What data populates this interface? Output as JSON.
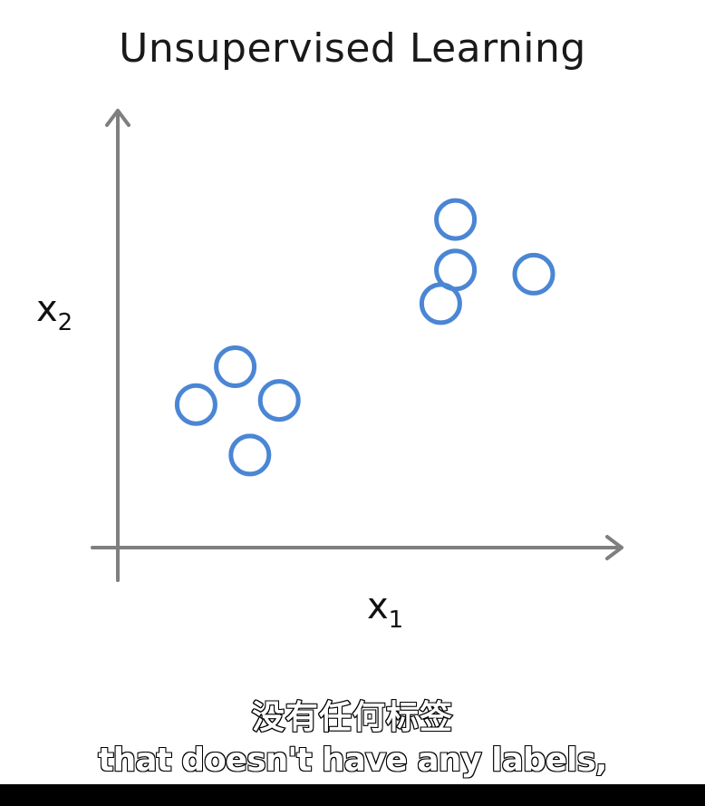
{
  "chart_data": {
    "type": "scatter",
    "title": "Unsupervised Learning",
    "xlabel": "x",
    "xlabel_sub": "1",
    "ylabel": "x",
    "ylabel_sub": "2",
    "xlim": [
      0,
      10
    ],
    "ylim": [
      0,
      10
    ],
    "grid": false,
    "marker": "open-circle",
    "marker_color": "#4a86d4",
    "axis_color": "#7f7f7f",
    "x": [
      1.6,
      2.4,
      3.3,
      2.7,
      6.6,
      6.9,
      6.9,
      8.5
    ],
    "y": [
      3.4,
      4.3,
      3.5,
      2.2,
      5.8,
      7.8,
      6.6,
      6.5
    ]
  },
  "subtitles": {
    "chinese": "没有任何标签",
    "english": "that doesn't have any labels,"
  }
}
